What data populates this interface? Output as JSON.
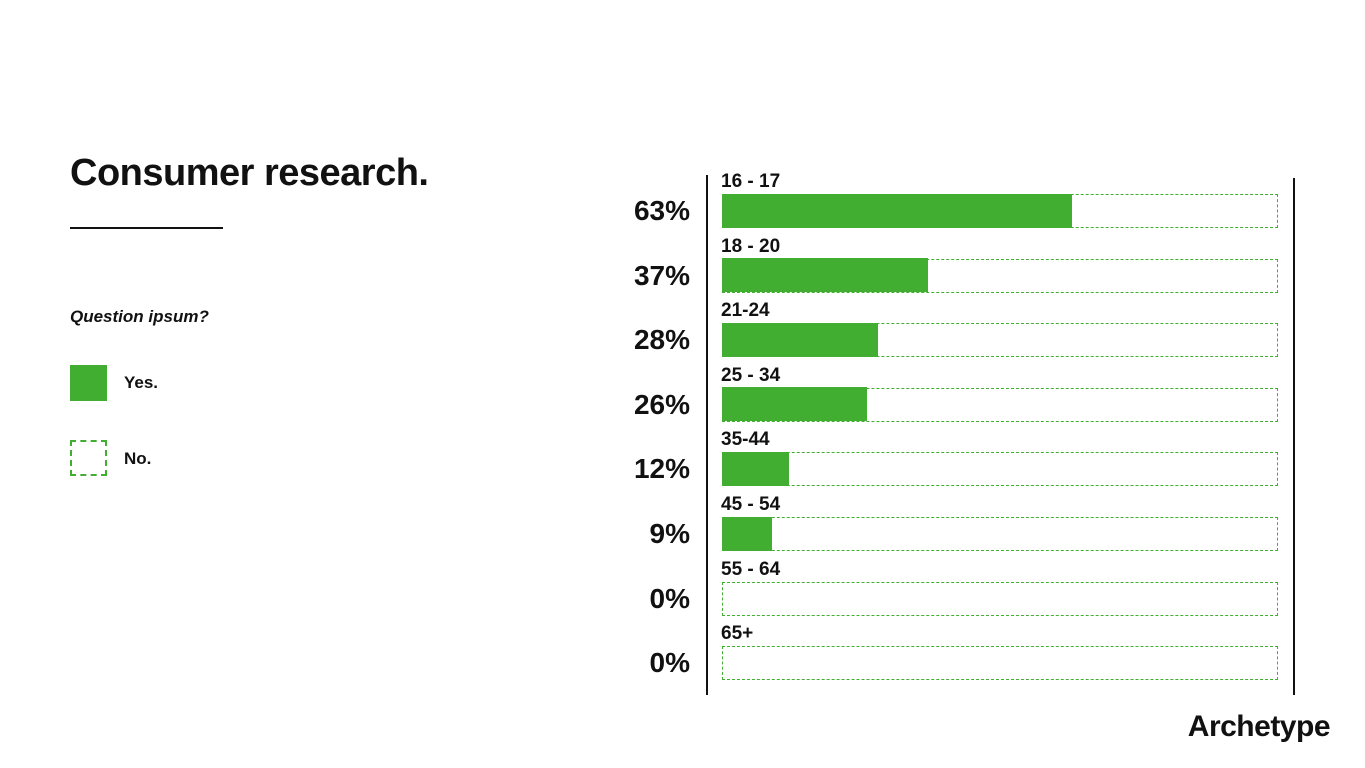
{
  "title": "Consumer research.",
  "question": "Question ipsum?",
  "legend": {
    "yes_label": "Yes.",
    "no_label": "No."
  },
  "colors": {
    "yes": "#41ae31",
    "no_border": "#41ae31",
    "text": "#111111"
  },
  "brand": "Archetype",
  "chart_data": {
    "type": "bar",
    "orientation": "horizontal",
    "categories": [
      "16 - 17",
      "18 - 20",
      "21-24",
      "25 - 34",
      "35-44",
      "45 - 54",
      "55 - 64",
      "65+"
    ],
    "value_labels": [
      "63%",
      "37%",
      "28%",
      "26%",
      "12%",
      "9%",
      "0%",
      "0%"
    ],
    "series": [
      {
        "name": "Yes.",
        "values": [
          63,
          37,
          28,
          26,
          12,
          9,
          0,
          0
        ]
      }
    ],
    "xlim": [
      0,
      100
    ],
    "legend_position": "left",
    "grid": false
  }
}
